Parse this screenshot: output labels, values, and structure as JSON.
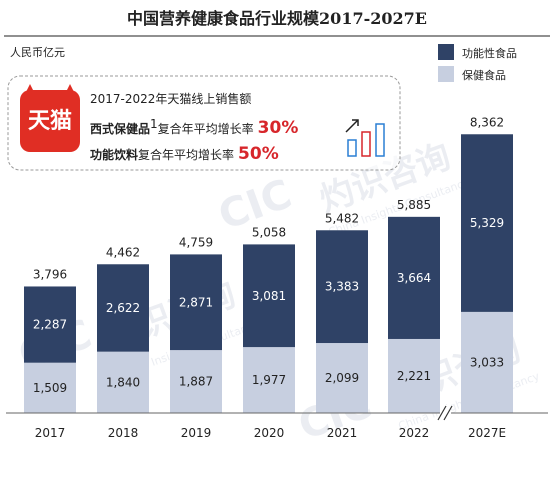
{
  "chart_data": {
    "type": "bar",
    "stacked": true,
    "title": "中国营养健康食品行业规模2017-2027E",
    "unit": "人民币亿元",
    "categories": [
      "2017",
      "2018",
      "2019",
      "2020",
      "2021",
      "2022",
      "2027E"
    ],
    "series": [
      {
        "name": "保健食品",
        "color": "#c7cfe0",
        "label_color": "#222222",
        "values": [
          1509,
          1840,
          1887,
          1977,
          2099,
          2221,
          3033
        ]
      },
      {
        "name": "功能性食品",
        "color": "#2f4266",
        "label_color": "#ffffff",
        "values": [
          2287,
          2622,
          2871,
          3081,
          3383,
          3664,
          5329
        ]
      }
    ],
    "totals": [
      3796,
      4462,
      4759,
      5058,
      5482,
      5885,
      8362
    ],
    "ylim": [
      0,
      9000
    ],
    "grid": false,
    "legend": "top-right",
    "axis_break_before": "2027E"
  },
  "callout": {
    "logo_text": "天猫",
    "line1": "2017-2022年天猫线上销售额",
    "line2_bold": "西式保健品",
    "line2_sup": "1",
    "line2_text": "复合年平均增长率",
    "line2_pct": "30%",
    "line3_bold": "功能饮料",
    "line3_text": "复合年平均增长率",
    "line3_pct": "50%"
  },
  "watermark": {
    "logo": "CIC",
    "cn": "灼识咨询",
    "en": "China Insights Consultancy"
  },
  "colors": {
    "dark_bar": "#2f4266",
    "light_bar": "#c7cfe0",
    "accent_red": "#d7262b",
    "tmall_red": "#e02e24"
  }
}
